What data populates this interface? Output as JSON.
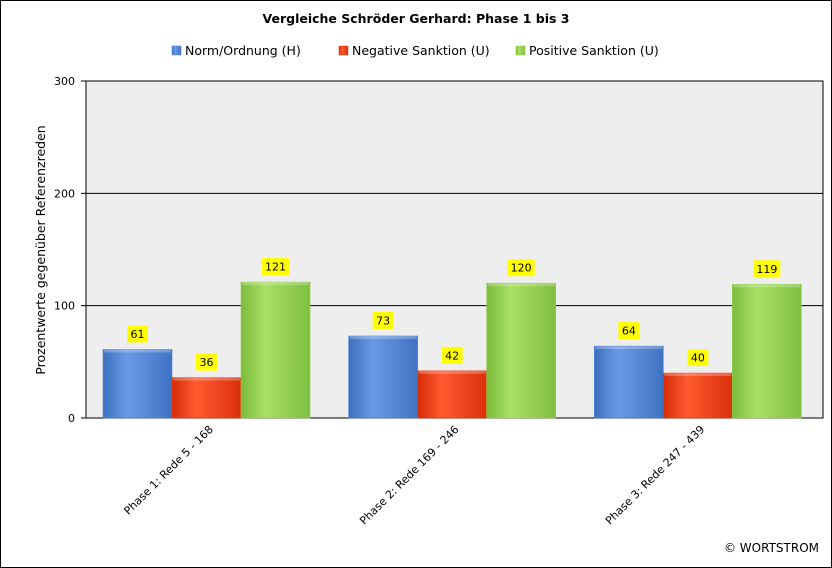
{
  "chart_data": {
    "type": "bar",
    "title": "Vergleiche Schröder Gerhard: Phase 1 bis 3",
    "ylabel": "Prozentwerte  gegenüber Referenzreden",
    "xlabel": "",
    "ylim": [
      0,
      300
    ],
    "yticks": [
      0,
      100,
      200,
      300
    ],
    "grid": true,
    "legend_position": "top",
    "categories": [
      "Phase 1: Rede 5 - 168",
      "Phase 2: Rede 169 - 246",
      "Phase 3: Rede 247 - 439"
    ],
    "series": [
      {
        "name": "Norm/Ordnung (H)",
        "color": "#4f86d8",
        "values": [
          61,
          73,
          64
        ]
      },
      {
        "name": "Negative Sanktion (U)",
        "color": "#f03a10",
        "values": [
          36,
          42,
          40
        ]
      },
      {
        "name": "Positive Sanktion (U)",
        "color": "#92d050",
        "values": [
          121,
          120,
          119
        ]
      }
    ],
    "plot_background": "#eeeeee",
    "label_background": "#ffff00"
  },
  "credit": "© WORTSTROM"
}
